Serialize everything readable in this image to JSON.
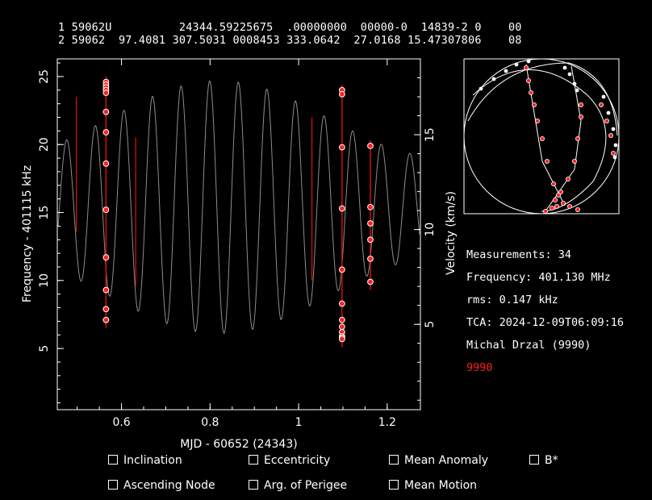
{
  "tle": {
    "line1": "1 59062U          24344.59225675  .00000000  00000-0  14839-2 0    00",
    "line2": "2 59062  97.4081 307.5031 0008453 333.0642  27.0168 15.47307806    08"
  },
  "info": {
    "measurements": "Measurements: 34",
    "frequency": "Frequency: 401.130 MHz",
    "rms": "rms: 0.147 kHz",
    "tca": "TCA: 2024-12-09T06:09:16",
    "observer": "Michal Drzal (9990)",
    "station_id": "9990",
    "station_color": "#ff2020"
  },
  "fit_options": [
    {
      "label": "Inclination"
    },
    {
      "label": "Eccentricity"
    },
    {
      "label": "Mean Anomaly"
    },
    {
      "label": "B*"
    },
    {
      "label": "Ascending Node"
    },
    {
      "label": "Arg. of Perigee"
    },
    {
      "label": "Mean Motion"
    }
  ],
  "chart_data": {
    "type": "scatter",
    "xlabel": "MJD - 60652 (24343)",
    "ylabel": "Frequency - 401115 kHz",
    "y2label": "Velocity (km/s)",
    "xlim": [
      0.455,
      1.275
    ],
    "ylim": [
      0.5,
      26.3
    ],
    "y2lim": [
      0.5,
      19
    ],
    "xticks": [
      0.6,
      0.8,
      1,
      1.2
    ],
    "xtick_labels": [
      "0.6",
      "0.8",
      "1",
      "1.2"
    ],
    "yticks": [
      5,
      10,
      15,
      20,
      25
    ],
    "ytick_labels": [
      "5",
      "10",
      "15",
      "20",
      "25"
    ],
    "y2ticks": [
      5,
      10,
      15
    ],
    "y2tick_labels": [
      "5",
      "10",
      "15"
    ],
    "colors": {
      "model": "#8c8c8c",
      "visible_pass": "#e01010",
      "measurement": "#ff2020"
    },
    "series": [
      {
        "name": "",
        "passes": [
          {
            "x": 0.565,
            "y": [
              24.6,
              24.4,
              24.2,
              24.0,
              23.8,
              22.4,
              20.9,
              18.6,
              15.2,
              11.7,
              9.3,
              7.9,
              7.1
            ]
          },
          {
            "x": 1.098,
            "y": [
              24.0,
              23.7,
              19.8,
              15.3,
              10.8,
              8.3,
              7.1,
              6.6,
              6.2,
              5.9,
              5.8,
              5.7
            ]
          },
          {
            "x": 1.162,
            "y": [
              19.9,
              15.4,
              14.2,
              13.0,
              11.6,
              9.9
            ]
          }
        ]
      }
    ]
  }
}
